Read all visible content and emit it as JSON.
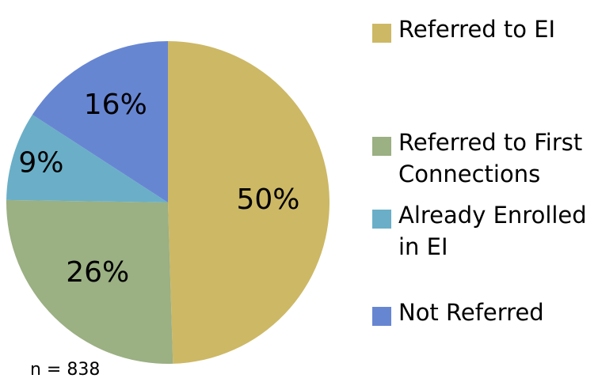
{
  "chart_data": {
    "type": "pie",
    "categories": [
      "Referred to EI",
      "Referred to First Connections",
      "Already Enrolled in EI",
      "Not Referred"
    ],
    "values": [
      50,
      26,
      9,
      16
    ],
    "value_labels": [
      "50%",
      "26%",
      "9%",
      "16%"
    ],
    "colors": [
      "#cdb865",
      "#9bb083",
      "#6aafc7",
      "#6786d2"
    ],
    "note": "n = 838"
  }
}
